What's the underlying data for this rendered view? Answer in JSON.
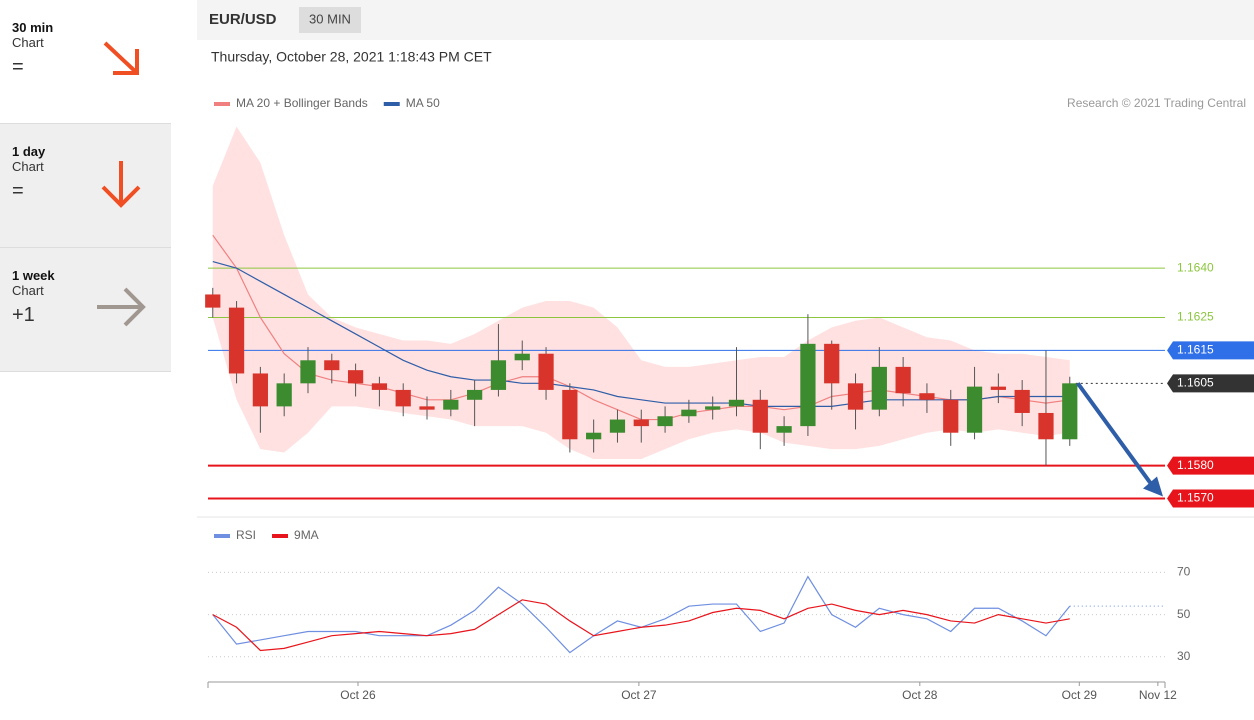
{
  "sidebar": {
    "items": [
      {
        "period": "30 min",
        "kind": "Chart",
        "sign": "="
      },
      {
        "period": "1 day",
        "kind": "Chart",
        "sign": "="
      },
      {
        "period": "1 week",
        "kind": "Chart",
        "sign": "+1"
      }
    ]
  },
  "header": {
    "symbol": "EUR/USD",
    "timeframe": "30 MIN",
    "datetime": "Thursday, October 28, 2021 1:18:43 PM CET",
    "credit": "Research © 2021 Trading Central"
  },
  "chart_data": [
    {
      "type": "candlestick",
      "x": [
        0,
        1,
        2,
        3,
        4,
        5,
        6,
        7,
        8,
        9,
        10,
        11,
        12,
        13,
        14,
        15,
        16,
        17,
        18,
        19,
        20,
        21,
        22,
        23,
        24,
        25,
        26,
        27,
        28,
        29,
        30,
        31,
        32,
        33,
        34,
        35,
        36
      ],
      "open": [
        1.1632,
        1.1628,
        1.1608,
        1.1598,
        1.1605,
        1.1612,
        1.1609,
        1.1605,
        1.1603,
        1.1598,
        1.1597,
        1.16,
        1.1603,
        1.1612,
        1.1614,
        1.1603,
        1.1588,
        1.159,
        1.1594,
        1.1592,
        1.1595,
        1.1597,
        1.1598,
        1.16,
        1.159,
        1.1592,
        1.1617,
        1.1605,
        1.1597,
        1.161,
        1.1602,
        1.16,
        1.159,
        1.1604,
        1.1603,
        1.1596,
        1.1588
      ],
      "high": [
        1.1634,
        1.163,
        1.161,
        1.1608,
        1.1616,
        1.1614,
        1.1611,
        1.1607,
        1.1605,
        1.1601,
        1.1603,
        1.1606,
        1.1623,
        1.1618,
        1.1616,
        1.1605,
        1.1594,
        1.1597,
        1.1597,
        1.1598,
        1.16,
        1.1601,
        1.1616,
        1.1603,
        1.1595,
        1.1626,
        1.1618,
        1.1608,
        1.1616,
        1.1613,
        1.1605,
        1.1603,
        1.161,
        1.1608,
        1.1606,
        1.1615,
        1.1607
      ],
      "low": [
        1.1625,
        1.1605,
        1.159,
        1.1595,
        1.1602,
        1.1605,
        1.1601,
        1.1598,
        1.1595,
        1.1594,
        1.1595,
        1.1592,
        1.1601,
        1.1609,
        1.16,
        1.1584,
        1.1584,
        1.1587,
        1.1587,
        1.159,
        1.1593,
        1.1594,
        1.1595,
        1.1585,
        1.1586,
        1.1589,
        1.1597,
        1.1591,
        1.1595,
        1.1598,
        1.1596,
        1.1586,
        1.1588,
        1.1599,
        1.1592,
        1.158,
        1.1586
      ],
      "close": [
        1.1628,
        1.1608,
        1.1598,
        1.1605,
        1.1612,
        1.1609,
        1.1605,
        1.1603,
        1.1598,
        1.1597,
        1.16,
        1.1603,
        1.1612,
        1.1614,
        1.1603,
        1.1588,
        1.159,
        1.1594,
        1.1592,
        1.1595,
        1.1597,
        1.1598,
        1.16,
        1.159,
        1.1592,
        1.1617,
        1.1605,
        1.1597,
        1.161,
        1.1602,
        1.16,
        1.159,
        1.1604,
        1.1603,
        1.1596,
        1.1588,
        1.1605
      ],
      "up_color": "#3d8b2f",
      "down_color": "#d9342b",
      "series": [
        {
          "name": "MA 20 + Bollinger Bands",
          "color": "#f08080",
          "values": [
            1.165,
            1.164,
            1.1625,
            1.1614,
            1.1608,
            1.1606,
            1.1605,
            1.1604,
            1.1602,
            1.16,
            1.16,
            1.1602,
            1.1605,
            1.1607,
            1.1607,
            1.1604,
            1.16,
            1.1597,
            1.1594,
            1.1594,
            1.1596,
            1.1597,
            1.1598,
            1.1598,
            1.1597,
            1.1598,
            1.1601,
            1.1602,
            1.1603,
            1.1602,
            1.1601,
            1.16,
            1.16,
            1.1601,
            1.16,
            1.1599,
            1.16
          ]
        },
        {
          "name": "MA 50",
          "color": "#2f5ea8",
          "values": [
            1.1642,
            1.164,
            1.1636,
            1.1632,
            1.1628,
            1.1624,
            1.162,
            1.1616,
            1.1612,
            1.1609,
            1.1607,
            1.1606,
            1.1606,
            1.1605,
            1.1605,
            1.1604,
            1.1603,
            1.1601,
            1.16,
            1.1599,
            1.1599,
            1.1599,
            1.1599,
            1.1598,
            1.1598,
            1.1598,
            1.1598,
            1.1599,
            1.16,
            1.16,
            1.16,
            1.16,
            1.16,
            1.1601,
            1.1601,
            1.1601,
            1.1601
          ]
        }
      ],
      "bands": {
        "color": "#ffdcdc",
        "upper": [
          1.1665,
          1.1683,
          1.1672,
          1.165,
          1.1632,
          1.1625,
          1.1622,
          1.162,
          1.1618,
          1.1618,
          1.1617,
          1.162,
          1.1624,
          1.1628,
          1.163,
          1.163,
          1.1628,
          1.1622,
          1.1612,
          1.161,
          1.161,
          1.1611,
          1.1612,
          1.1613,
          1.1613,
          1.1618,
          1.1622,
          1.1624,
          1.1625,
          1.1622,
          1.1619,
          1.1618,
          1.1615,
          1.1614,
          1.1614,
          1.1613,
          1.1612
        ],
        "lower": [
          1.1625,
          1.16,
          1.1585,
          1.1584,
          1.159,
          1.1598,
          1.1598,
          1.1597,
          1.1596,
          1.1595,
          1.1594,
          1.1592,
          1.1592,
          1.1592,
          1.159,
          1.1585,
          1.1582,
          1.1582,
          1.1582,
          1.1585,
          1.1588,
          1.159,
          1.1591,
          1.159,
          1.1587,
          1.1586,
          1.1585,
          1.1585,
          1.1586,
          1.1588,
          1.159,
          1.1591,
          1.159,
          1.1591,
          1.159,
          1.1589,
          1.159
        ]
      },
      "levels": [
        {
          "value": 1.164,
          "label": "1.1640",
          "color": "#8cc63f",
          "style": "target"
        },
        {
          "value": 1.1625,
          "label": "1.1625",
          "color": "#8cc63f",
          "style": "target"
        },
        {
          "value": 1.1615,
          "label": "1.1615",
          "color": "#2f6fe8",
          "style": "pivot"
        },
        {
          "value": 1.1605,
          "label": "1.1605",
          "color": "#333333",
          "style": "last"
        },
        {
          "value": 1.158,
          "label": "1.1580",
          "color": "#e8141b",
          "style": "support"
        },
        {
          "value": 1.157,
          "label": "1.1570",
          "color": "#e8141b",
          "style": "support"
        }
      ],
      "xlim": [
        -0.2,
        40
      ],
      "ylim": [
        1.1565,
        1.1685
      ]
    },
    {
      "type": "line",
      "x": [
        0,
        1,
        2,
        3,
        4,
        5,
        6,
        7,
        8,
        9,
        10,
        11,
        12,
        13,
        14,
        15,
        16,
        17,
        18,
        19,
        20,
        21,
        22,
        23,
        24,
        25,
        26,
        27,
        28,
        29,
        30,
        31,
        32,
        33,
        34,
        35,
        36
      ],
      "series": [
        {
          "name": "RSI",
          "color": "#6f8fe0",
          "values": [
            50,
            36,
            38,
            40,
            42,
            42,
            42,
            40,
            40,
            40,
            45,
            52,
            63,
            55,
            44,
            32,
            40,
            47,
            44,
            48,
            54,
            55,
            55,
            42,
            46,
            68,
            50,
            44,
            53,
            50,
            48,
            42,
            53,
            53,
            47,
            40,
            54
          ]
        },
        {
          "name": "9MA",
          "color": "#e8141b",
          "values": [
            50,
            44,
            33,
            34,
            37,
            40,
            41,
            42,
            41,
            40,
            41,
            43,
            50,
            57,
            55,
            47,
            40,
            42,
            44,
            45,
            47,
            51,
            53,
            52,
            48,
            53,
            55,
            52,
            50,
            52,
            50,
            47,
            46,
            50,
            48,
            46,
            48
          ]
        }
      ],
      "xlim": [
        -0.2,
        40
      ],
      "ylim": [
        19,
        83
      ],
      "yticks": [
        30,
        50,
        70
      ],
      "xticks": [
        {
          "value": 6.1,
          "label": "Oct 26"
        },
        {
          "value": 17.9,
          "label": "Oct 27"
        },
        {
          "value": 29.7,
          "label": "Oct 28"
        },
        {
          "value": 36.4,
          "label": "Oct 29"
        },
        {
          "value": 39.7,
          "label": "Nov 12"
        }
      ]
    }
  ]
}
